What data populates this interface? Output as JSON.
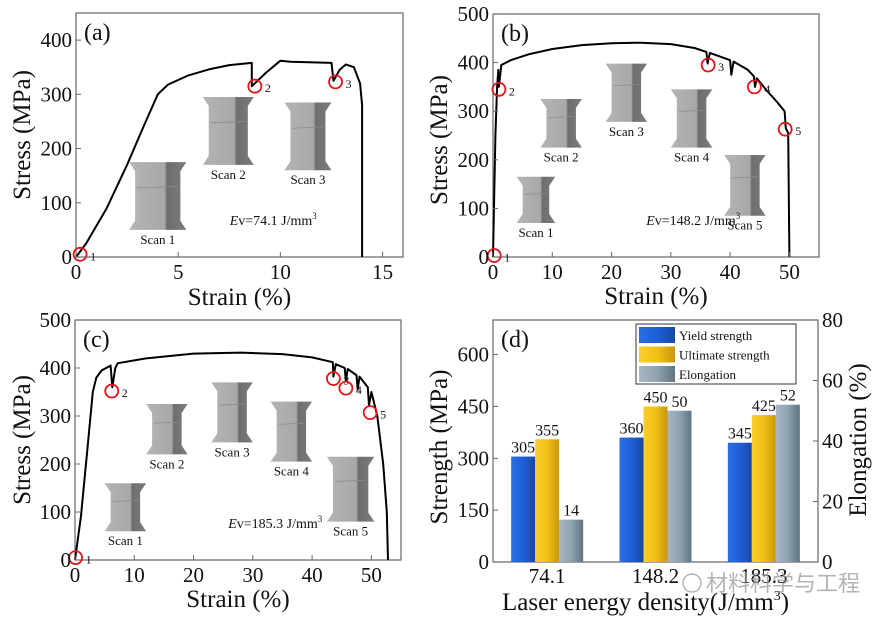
{
  "chart_data": [
    {
      "id": "a",
      "type": "line",
      "panel_label": "(a)",
      "xlabel": "Strain (%)",
      "ylabel": "Stress (MPa)",
      "xlim": [
        0,
        16
      ],
      "ylim": [
        0,
        450
      ],
      "xticks": [
        0,
        5,
        10,
        15
      ],
      "yticks": [
        0,
        100,
        200,
        300,
        400
      ],
      "annotation": "Ev=74.1 J/mm³",
      "annotation_italic": "E",
      "annotation_rest": "v=74.1 J/mm",
      "annotation_sup": "3",
      "curve": [
        [
          0,
          0
        ],
        [
          0.5,
          25
        ],
        [
          1.5,
          90
        ],
        [
          2.5,
          170
        ],
        [
          3.3,
          240
        ],
        [
          4,
          300
        ],
        [
          4.5,
          318
        ],
        [
          5.5,
          335
        ],
        [
          6.5,
          346
        ],
        [
          7.5,
          354
        ],
        [
          8.6,
          358
        ],
        [
          8.6,
          315
        ],
        [
          9.3,
          340
        ],
        [
          10,
          362
        ],
        [
          10.5,
          360
        ],
        [
          12.5,
          358
        ],
        [
          12.6,
          325
        ],
        [
          12.9,
          345
        ],
        [
          13.2,
          355
        ],
        [
          13.6,
          350
        ],
        [
          13.9,
          320
        ],
        [
          14.0,
          280
        ],
        [
          14.0,
          0
        ]
      ],
      "markers": [
        {
          "label": "1",
          "x": 0.2,
          "y": 5
        },
        {
          "label": "2",
          "x": 8.75,
          "y": 315
        },
        {
          "label": "3",
          "x": 12.7,
          "y": 323
        }
      ],
      "insets": [
        {
          "label": "Scan 1",
          "x": 2.6,
          "y": 175,
          "w": 2.8,
          "h": 125
        },
        {
          "label": "Scan 2",
          "x": 6.2,
          "y": 295,
          "w": 2.5,
          "h": 125
        },
        {
          "label": "Scan 3",
          "x": 10.2,
          "y": 285,
          "w": 2.3,
          "h": 125
        }
      ]
    },
    {
      "id": "b",
      "type": "line",
      "panel_label": "(b)",
      "xlabel": "Strain (%)",
      "ylabel": "Stress (MPa)",
      "xlim": [
        0,
        55
      ],
      "ylim": [
        0,
        500
      ],
      "xticks": [
        0,
        10,
        20,
        30,
        40,
        50
      ],
      "yticks": [
        0,
        100,
        200,
        300,
        400,
        500
      ],
      "annotation_italic": "E",
      "annotation_rest": "v=148.2 J/mm",
      "annotation_sup": "3",
      "curve": [
        [
          0,
          0
        ],
        [
          0.4,
          250
        ],
        [
          0.7,
          350
        ],
        [
          0.9,
          385
        ],
        [
          1.0,
          350
        ],
        [
          1.4,
          395
        ],
        [
          3,
          405
        ],
        [
          6,
          417
        ],
        [
          10,
          428
        ],
        [
          15,
          436
        ],
        [
          20,
          440
        ],
        [
          25,
          441
        ],
        [
          30,
          438
        ],
        [
          34,
          430
        ],
        [
          36,
          422
        ],
        [
          36.2,
          398
        ],
        [
          36.6,
          420
        ],
        [
          40,
          405
        ],
        [
          40.2,
          375
        ],
        [
          40.6,
          402
        ],
        [
          43,
          385
        ],
        [
          44,
          372
        ],
        [
          44.2,
          350
        ],
        [
          44.5,
          368
        ],
        [
          46,
          345
        ],
        [
          48,
          318
        ],
        [
          49.2,
          300
        ],
        [
          49.4,
          265
        ],
        [
          49.8,
          255
        ],
        [
          50,
          0
        ]
      ],
      "markers": [
        {
          "label": "1",
          "x": 0.2,
          "y": 3
        },
        {
          "label": "2",
          "x": 1.0,
          "y": 345
        },
        {
          "label": "3",
          "x": 36.3,
          "y": 395
        },
        {
          "label": "4",
          "x": 44.1,
          "y": 350
        },
        {
          "label": "5",
          "x": 49.3,
          "y": 263
        }
      ],
      "insets": [
        {
          "label": "Scan 1",
          "x": 4,
          "y": 165,
          "w": 6.5,
          "h": 95
        },
        {
          "label": "Scan 2",
          "x": 8,
          "y": 325,
          "w": 7,
          "h": 100
        },
        {
          "label": "Scan 3",
          "x": 19,
          "y": 398,
          "w": 7,
          "h": 120
        },
        {
          "label": "Scan 4",
          "x": 30,
          "y": 345,
          "w": 7,
          "h": 120
        },
        {
          "label": "Scan 5",
          "x": 39,
          "y": 210,
          "w": 7,
          "h": 125
        }
      ]
    },
    {
      "id": "c",
      "type": "line",
      "panel_label": "(c)",
      "xlabel": "Strain (%)",
      "ylabel": "Stress (MPa)",
      "xlim": [
        0,
        55
      ],
      "ylim": [
        0,
        500
      ],
      "xticks": [
        0,
        10,
        20,
        30,
        40,
        50
      ],
      "yticks": [
        0,
        100,
        200,
        300,
        400,
        500
      ],
      "annotation_italic": "E",
      "annotation_rest": "v=185.3 J/mm",
      "annotation_sup": "3",
      "curve": [
        [
          0,
          0
        ],
        [
          1,
          90
        ],
        [
          2,
          220
        ],
        [
          3,
          350
        ],
        [
          3.6,
          380
        ],
        [
          4.5,
          395
        ],
        [
          6,
          405
        ],
        [
          6.3,
          360
        ],
        [
          6.8,
          400
        ],
        [
          7.2,
          410
        ],
        [
          12,
          420
        ],
        [
          20,
          430
        ],
        [
          28,
          432
        ],
        [
          35,
          429
        ],
        [
          40,
          422
        ],
        [
          43.5,
          412
        ],
        [
          43.6,
          382
        ],
        [
          44,
          408
        ],
        [
          45.5,
          400
        ],
        [
          45.7,
          372
        ],
        [
          46,
          398
        ],
        [
          47.5,
          385
        ],
        [
          47.7,
          355
        ],
        [
          48,
          382
        ],
        [
          49.4,
          360
        ],
        [
          49.6,
          322
        ],
        [
          50,
          350
        ],
        [
          51,
          300
        ],
        [
          52,
          200
        ],
        [
          52.6,
          100
        ],
        [
          52.8,
          0
        ]
      ],
      "markers": [
        {
          "label": "1",
          "x": 0.1,
          "y": 5
        },
        {
          "label": "2",
          "x": 6.2,
          "y": 352
        },
        {
          "label": "3",
          "x": 43.6,
          "y": 378
        },
        {
          "label": "4",
          "x": 45.7,
          "y": 358
        },
        {
          "label": "5",
          "x": 49.8,
          "y": 307
        }
      ],
      "insets": [
        {
          "label": "Scan 1",
          "x": 5,
          "y": 160,
          "w": 7,
          "h": 100
        },
        {
          "label": "Scan 2",
          "x": 12,
          "y": 325,
          "w": 7,
          "h": 105
        },
        {
          "label": "Scan 3",
          "x": 23,
          "y": 370,
          "w": 7,
          "h": 125
        },
        {
          "label": "Scan 4",
          "x": 33,
          "y": 330,
          "w": 7,
          "h": 125
        },
        {
          "label": "Scan 5",
          "x": 42.5,
          "y": 215,
          "w": 8,
          "h": 135
        }
      ]
    },
    {
      "id": "d",
      "type": "bar",
      "panel_label": "(d)",
      "xlabel": "Laser energy density(J/mm³)",
      "xlabel_main": "Laser energy density(J/mm",
      "xlabel_sup": "3",
      "xlabel_end": ")",
      "ylabel": "Strength (MPa)",
      "ylabel_right": "Elongation (%)",
      "categories": [
        "74.1",
        "148.2",
        "185.3"
      ],
      "ylim": [
        0,
        700
      ],
      "yticks": [
        0,
        150,
        300,
        450,
        600
      ],
      "ylim_right": [
        0,
        80
      ],
      "yticks_right": [
        0,
        20,
        40,
        60,
        80
      ],
      "series": [
        {
          "name": "Yield strength",
          "axis": "left",
          "color": "#1f5fd6",
          "values": [
            305,
            360,
            345
          ]
        },
        {
          "name": "Ultimate strength",
          "axis": "left",
          "color": "#f2c018",
          "values": [
            355,
            450,
            425
          ]
        },
        {
          "name": "Elongation",
          "axis": "right",
          "color": "#8fa3b0",
          "values": [
            14,
            50,
            52
          ]
        }
      ],
      "legend_position": "top-right"
    }
  ],
  "watermark": "材料科学与工程"
}
